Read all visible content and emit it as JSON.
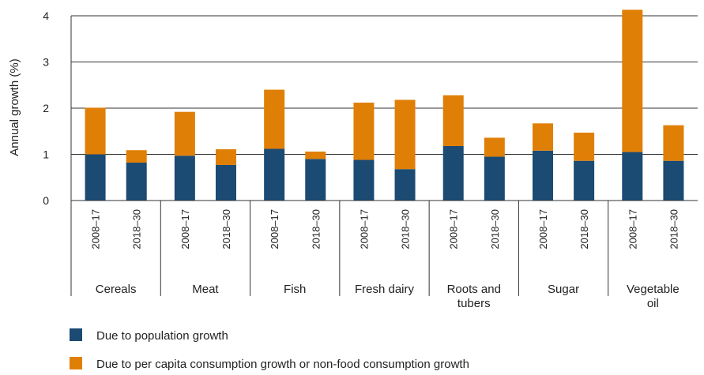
{
  "chart_data": {
    "type": "bar",
    "stacked": true,
    "ylabel": "Annual growth (%)",
    "ylim": [
      0,
      4
    ],
    "yticks": [
      "0",
      "1",
      "2",
      "3",
      "4"
    ],
    "grid": true,
    "legend_position": "bottom-left",
    "groups": [
      {
        "name": "Cereals",
        "periods": [
          "2008–17",
          "2018–30"
        ]
      },
      {
        "name": "Meat",
        "periods": [
          "2008–17",
          "2018–30"
        ]
      },
      {
        "name": "Fish",
        "periods": [
          "2008–17",
          "2018–30"
        ]
      },
      {
        "name": "Fresh dairy",
        "periods": [
          "2008–17",
          "2018–30"
        ]
      },
      {
        "name": "Roots and tubers",
        "periods": [
          "2008–17",
          "2018–30"
        ]
      },
      {
        "name": "Sugar",
        "periods": [
          "2008–17",
          "2018–30"
        ]
      },
      {
        "name": "Vegetable oil",
        "periods": [
          "2008–17",
          "2018–30"
        ]
      }
    ],
    "series": [
      {
        "name": "Due to population growth",
        "color": "#1b4a73",
        "values": [
          1.0,
          0.82,
          0.97,
          0.77,
          1.12,
          0.9,
          0.88,
          0.68,
          1.18,
          0.95,
          1.08,
          0.86,
          1.05,
          0.86
        ]
      },
      {
        "name": "Due to per capita consumption growth or non-food consumption growth",
        "color": "#e07f06",
        "values": [
          1.01,
          0.27,
          0.95,
          0.34,
          1.28,
          0.16,
          1.24,
          1.5,
          1.1,
          0.41,
          0.59,
          0.61,
          3.08,
          0.77
        ]
      }
    ]
  }
}
